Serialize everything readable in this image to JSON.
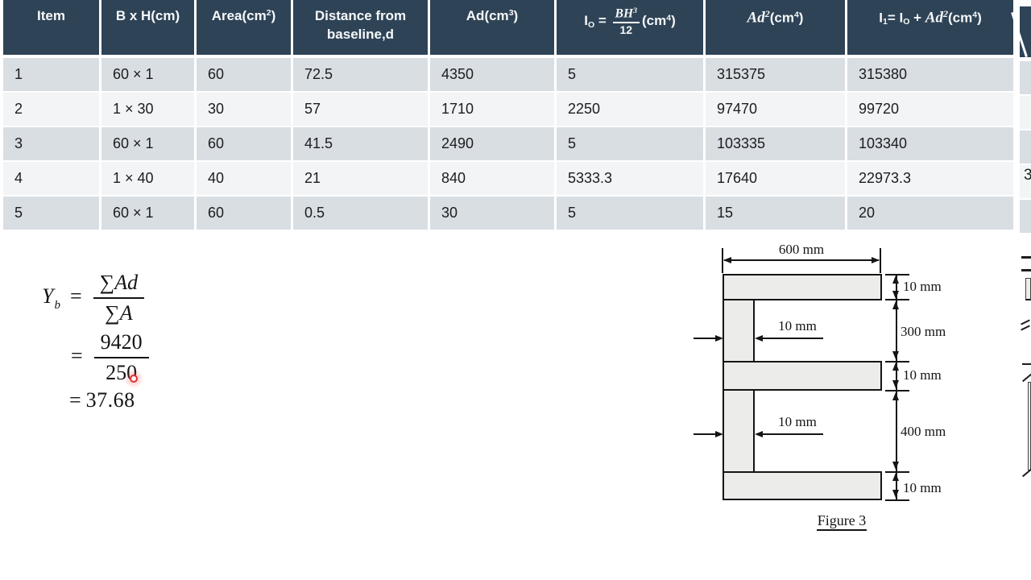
{
  "table": {
    "columns": [
      {
        "name": "item",
        "segments": [
          {
            "t": "Item"
          }
        ]
      },
      {
        "name": "b-x-h",
        "segments": [
          {
            "t": "B x H(cm)"
          }
        ]
      },
      {
        "name": "area",
        "segments": [
          {
            "t": "Area(cm"
          },
          {
            "t": "2",
            "s": "sup"
          },
          {
            "t": ")"
          }
        ]
      },
      {
        "name": "distance-from-baseline",
        "segments": [
          {
            "t": "Distance from baseline,d"
          }
        ]
      },
      {
        "name": "ad",
        "segments": [
          {
            "t": "Ad(cm"
          },
          {
            "t": "3",
            "s": "sup"
          },
          {
            "t": ")"
          }
        ]
      },
      {
        "name": "io",
        "segments": [
          {
            "t": "I"
          },
          {
            "t": "O",
            "s": "sub"
          },
          {
            "t": " = "
          },
          {
            "n": [
              {
                "t": "BH",
                "s": "i"
              },
              {
                "t": "3",
                "s": "isup"
              }
            ],
            "d": [
              {
                "t": "12"
              }
            ]
          },
          {
            "t": "(cm"
          },
          {
            "t": "4",
            "s": "sup"
          },
          {
            "t": ")"
          }
        ]
      },
      {
        "name": "ad2",
        "segments": [
          {
            "t": "Ad",
            "s": "i"
          },
          {
            "t": "2",
            "s": "isup"
          },
          {
            "t": "(cm"
          },
          {
            "t": "4",
            "s": "sup"
          },
          {
            "t": ")"
          }
        ]
      },
      {
        "name": "i1",
        "segments": [
          {
            "t": "I"
          },
          {
            "t": "1",
            "s": "sub"
          },
          {
            "t": "= I"
          },
          {
            "t": "O",
            "s": "sub"
          },
          {
            "t": " + "
          },
          {
            "t": "Ad",
            "s": "i"
          },
          {
            "t": "2",
            "s": "isup"
          },
          {
            "t": "(cm"
          },
          {
            "t": "4",
            "s": "sup"
          },
          {
            "t": ")"
          }
        ]
      }
    ],
    "rows": [
      [
        "1",
        "60 × 1",
        "60",
        "72.5",
        "4350",
        "5",
        "315375",
        "315380"
      ],
      [
        "2",
        "1 × 30",
        "30",
        "57",
        "1710",
        "2250",
        "97470",
        "99720"
      ],
      [
        "3",
        "60 × 1",
        "60",
        "41.5",
        "2490",
        "5",
        "103335",
        "103340"
      ],
      [
        "4",
        "1 × 40",
        "40",
        "21",
        "840",
        "5333.3",
        "17640",
        "22973.3"
      ],
      [
        "5",
        "60 × 1",
        "60",
        "0.5",
        "30",
        "5",
        "15",
        "20"
      ]
    ]
  },
  "formula": {
    "lhs": "Y",
    "lhs_sub": "b",
    "eq1": "=",
    "num1_sigma": "∑",
    "num1_var": "Ad",
    "den1_sigma": "∑",
    "den1_var": "A",
    "eq2": "=",
    "num2": "9420",
    "den2": "250",
    "eq3": "=",
    "result": "37.68"
  },
  "figure": {
    "width_label": "600 mm",
    "web_top_label": "10 mm",
    "web_bottom_label": "10 mm",
    "dim_top_flange": "10 mm",
    "dim_top_gap": "300 mm",
    "dim_mid_flange": "10 mm",
    "dim_bottom_gap": "400 mm",
    "dim_bottom_flange": "10 mm",
    "caption": "Figure 3"
  },
  "edge_fragment": {
    "digit": "3"
  },
  "colors": {
    "header_bg": "#2e4356",
    "row_odd": "#d9dee3",
    "row_even": "#f2f4f5",
    "laser": "#e03131",
    "fig_fill": "#ececea",
    "ink": "#151515"
  }
}
